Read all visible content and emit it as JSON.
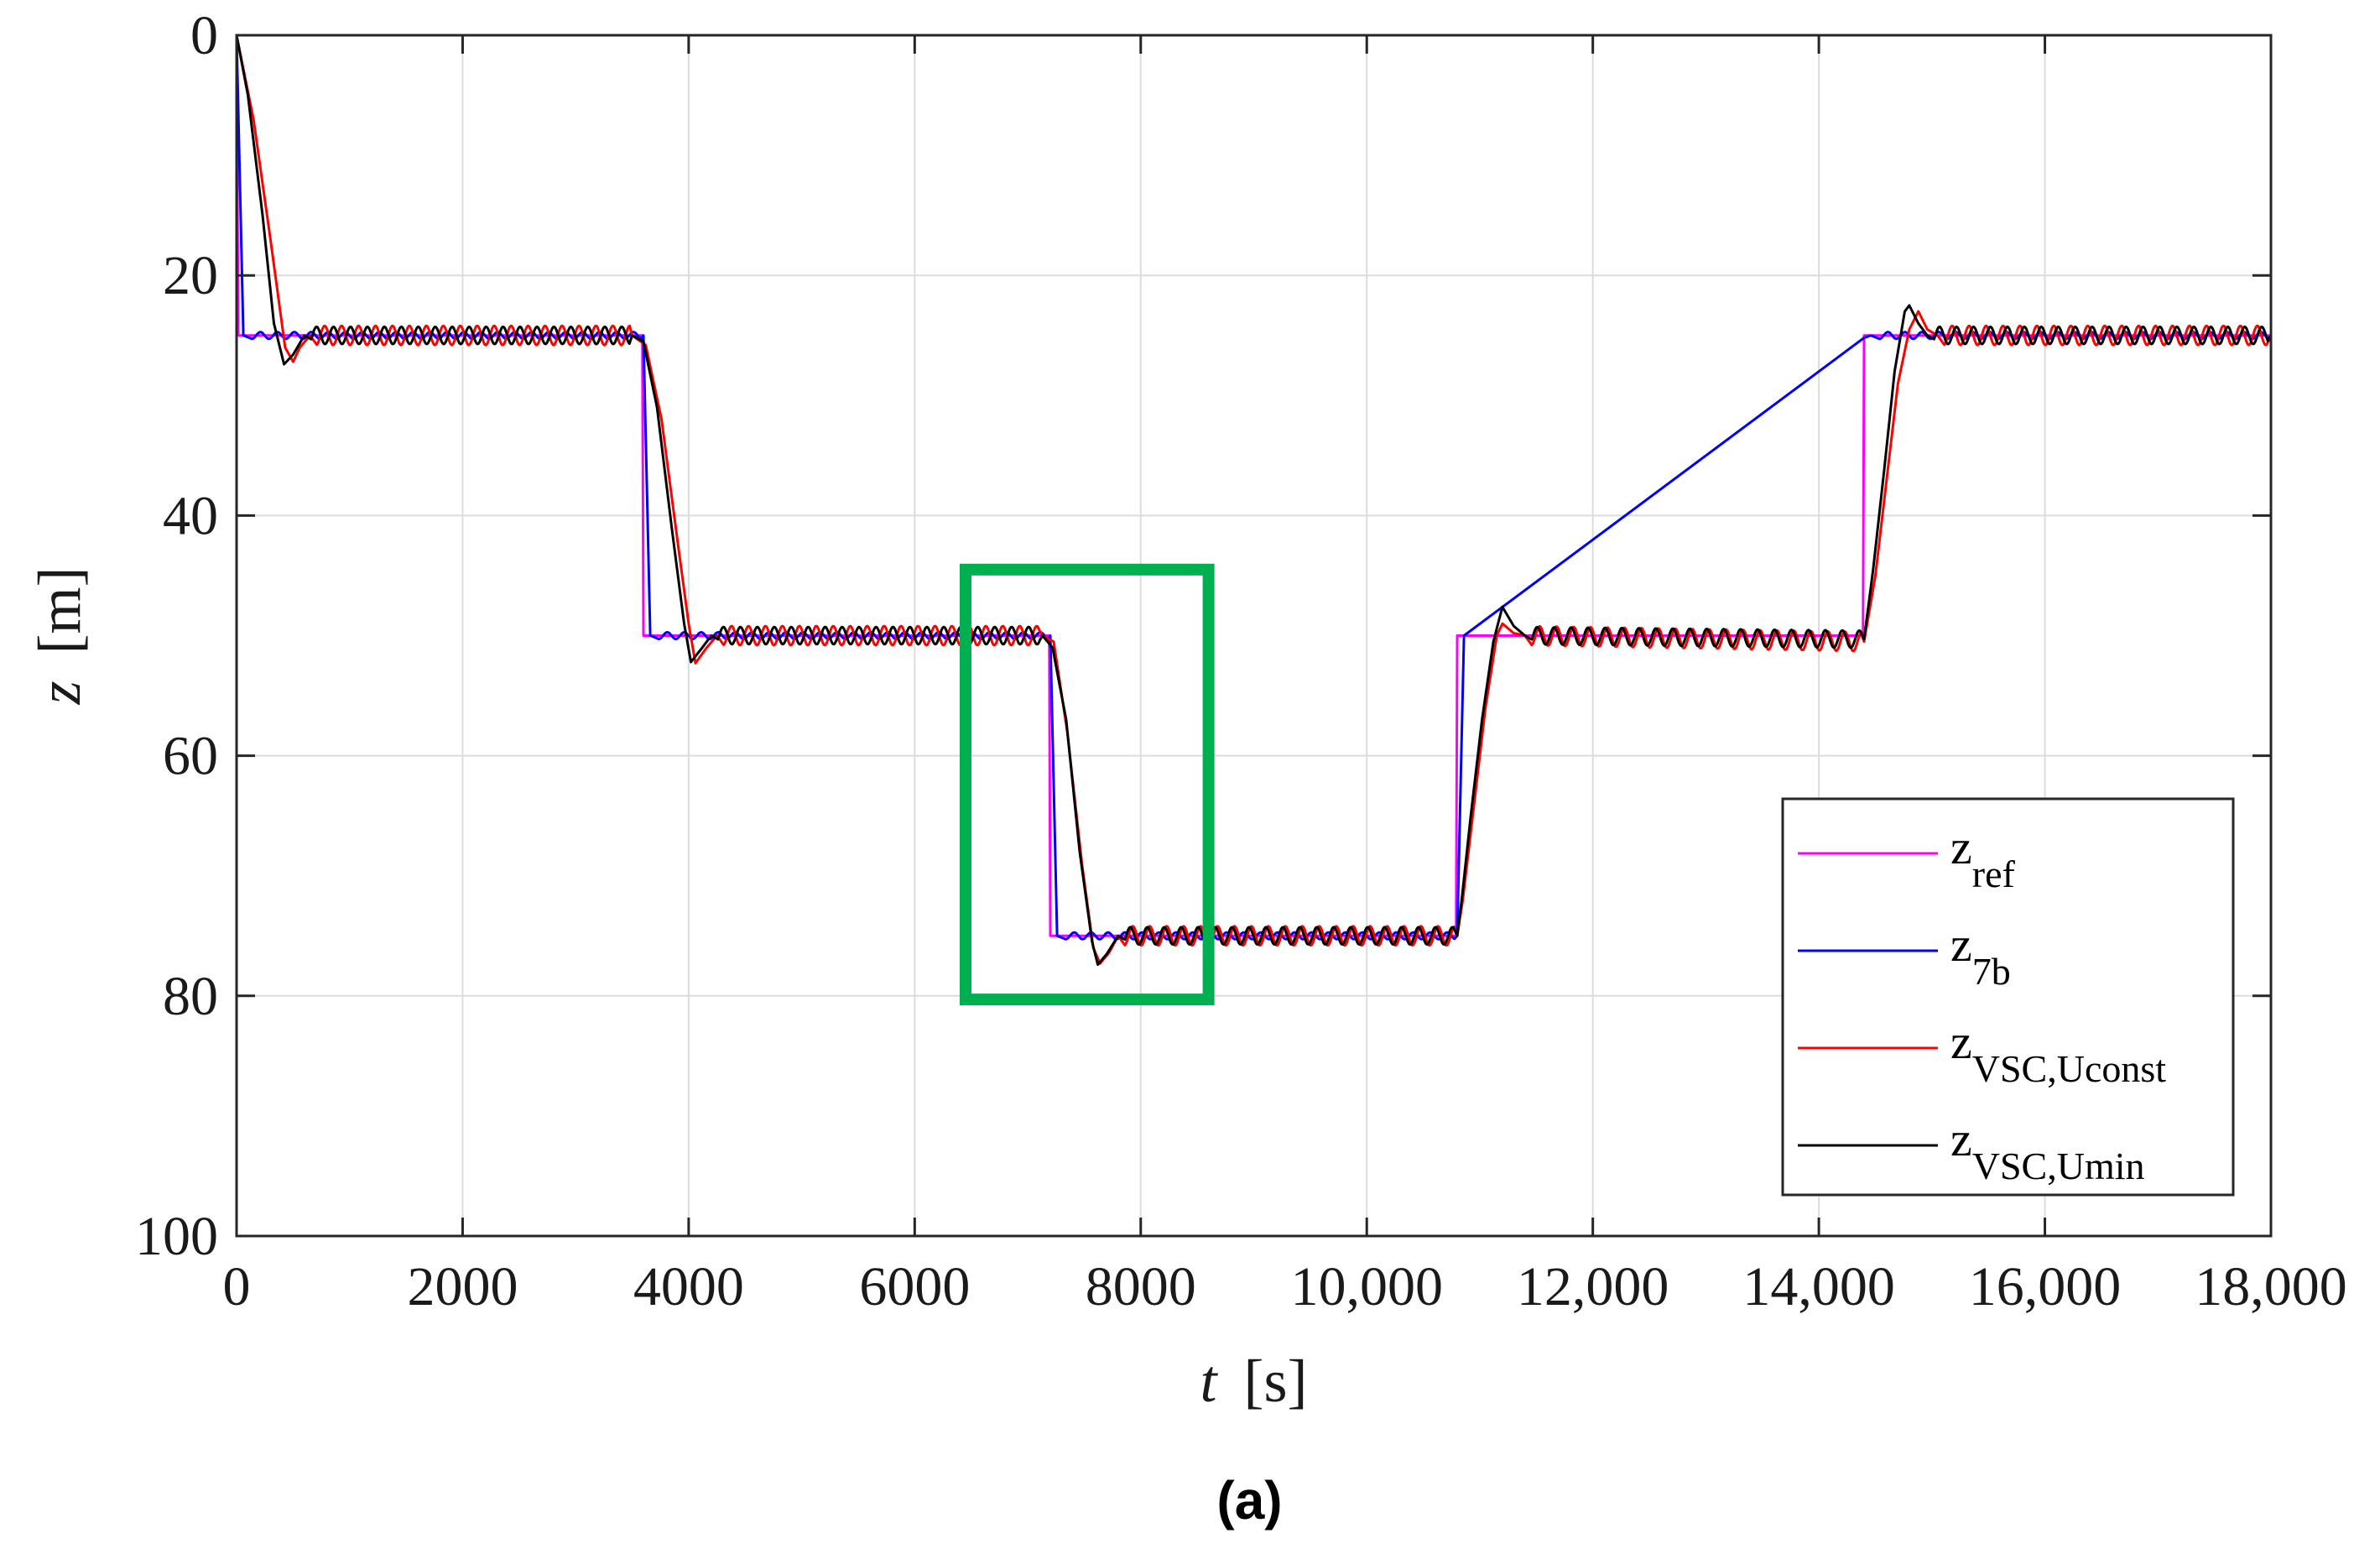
{
  "chart_data": {
    "type": "line",
    "caption": "(a)",
    "xlabel": {
      "variable": "t",
      "unit": "[s]"
    },
    "ylabel": {
      "variable": "z",
      "unit": "[m]"
    },
    "xlim": [
      0,
      18000
    ],
    "ylim": [
      0,
      100
    ],
    "y_reversed": true,
    "grid": true,
    "x_ticks": [
      {
        "value": 0,
        "label": "0"
      },
      {
        "value": 2000,
        "label": "2000"
      },
      {
        "value": 4000,
        "label": "4000"
      },
      {
        "value": 6000,
        "label": "6000"
      },
      {
        "value": 8000,
        "label": "8000"
      },
      {
        "value": 10000,
        "label": "10,000"
      },
      {
        "value": 12000,
        "label": "12,000"
      },
      {
        "value": 14000,
        "label": "14,000"
      },
      {
        "value": 16000,
        "label": "16,000"
      },
      {
        "value": 18000,
        "label": "18,000"
      }
    ],
    "y_ticks": [
      {
        "value": 0,
        "label": "0"
      },
      {
        "value": 20,
        "label": "20"
      },
      {
        "value": 40,
        "label": "40"
      },
      {
        "value": 60,
        "label": "60"
      },
      {
        "value": 80,
        "label": "80"
      },
      {
        "value": 100,
        "label": "100"
      }
    ],
    "legend_position": "lower-right",
    "oscillation": {
      "period_s": 150,
      "amplitude_m": 0.8
    },
    "series": [
      {
        "name": "z",
        "subscript": "ref",
        "color": "#ff00ff",
        "oscillates": false,
        "points": [
          [
            0,
            0
          ],
          [
            15,
            25
          ],
          [
            3590,
            25
          ],
          [
            3600,
            50
          ],
          [
            7190,
            50
          ],
          [
            7200,
            75
          ],
          [
            10790,
            75
          ],
          [
            10800,
            50
          ],
          [
            14390,
            50
          ],
          [
            14400,
            25
          ],
          [
            18000,
            25
          ]
        ]
      },
      {
        "name": "z",
        "subscript": "7b",
        "color": "#0000ff",
        "oscillates": true,
        "osc_scale": 0.35,
        "points": [
          [
            0,
            0
          ],
          [
            60,
            25
          ],
          [
            3600,
            25
          ],
          [
            3660,
            50
          ],
          [
            7200,
            50
          ],
          [
            7260,
            75
          ],
          [
            10800,
            75
          ],
          [
            10860,
            50
          ],
          [
            14400,
            25.2
          ],
          [
            14460,
            25
          ],
          [
            18000,
            25
          ]
        ]
      },
      {
        "name": "z",
        "subscript": "VSC,Uconst",
        "color": "#ff0000",
        "oscillates": true,
        "osc_scale": 1.0,
        "points": [
          [
            0,
            0
          ],
          [
            150,
            7
          ],
          [
            300,
            17
          ],
          [
            430,
            26
          ],
          [
            500,
            27.2
          ],
          [
            560,
            26
          ],
          [
            650,
            25
          ],
          [
            3500,
            25
          ],
          [
            3620,
            25.8
          ],
          [
            3760,
            32
          ],
          [
            3900,
            42
          ],
          [
            4000,
            49
          ],
          [
            4060,
            52.3
          ],
          [
            4160,
            51
          ],
          [
            4250,
            50
          ],
          [
            7130,
            50
          ],
          [
            7230,
            50.5
          ],
          [
            7350,
            58
          ],
          [
            7480,
            69
          ],
          [
            7580,
            76
          ],
          [
            7640,
            77.3
          ],
          [
            7720,
            76.4
          ],
          [
            7800,
            75
          ],
          [
            10800,
            75
          ],
          [
            10850,
            72
          ],
          [
            10950,
            64
          ],
          [
            11050,
            56
          ],
          [
            11150,
            50
          ],
          [
            11200,
            49
          ],
          [
            11300,
            49.8
          ],
          [
            11400,
            50
          ],
          [
            14400,
            50.5
          ],
          [
            14500,
            45
          ],
          [
            14600,
            37
          ],
          [
            14700,
            29
          ],
          [
            14800,
            24.5
          ],
          [
            14880,
            23
          ],
          [
            14960,
            24.5
          ],
          [
            15050,
            25
          ],
          [
            18000,
            25
          ]
        ]
      },
      {
        "name": "z",
        "subscript": "VSC,Umin",
        "color": "#000000",
        "oscillates": true,
        "osc_scale": 0.9,
        "points": [
          [
            0,
            0
          ],
          [
            100,
            5
          ],
          [
            230,
            15
          ],
          [
            330,
            24
          ],
          [
            420,
            27.4
          ],
          [
            500,
            26.6
          ],
          [
            600,
            25
          ],
          [
            3500,
            25
          ],
          [
            3600,
            25.5
          ],
          [
            3720,
            31
          ],
          [
            3850,
            41
          ],
          [
            3960,
            49
          ],
          [
            4020,
            52.2
          ],
          [
            4120,
            51
          ],
          [
            4200,
            50
          ],
          [
            7130,
            50
          ],
          [
            7220,
            51
          ],
          [
            7340,
            57
          ],
          [
            7460,
            68
          ],
          [
            7570,
            75.5
          ],
          [
            7620,
            77.4
          ],
          [
            7700,
            76.5
          ],
          [
            7800,
            75
          ],
          [
            10800,
            75
          ],
          [
            10840,
            72
          ],
          [
            10920,
            65
          ],
          [
            11020,
            57
          ],
          [
            11120,
            50.5
          ],
          [
            11200,
            47.6
          ],
          [
            11300,
            49.2
          ],
          [
            11400,
            50
          ],
          [
            14400,
            50.3
          ],
          [
            14480,
            44.5
          ],
          [
            14580,
            36
          ],
          [
            14670,
            28
          ],
          [
            14760,
            23
          ],
          [
            14800,
            22.5
          ],
          [
            14880,
            24
          ],
          [
            14960,
            25
          ],
          [
            18000,
            25
          ]
        ]
      }
    ],
    "annotations": [
      {
        "type": "rectangle",
        "color": "#00b050",
        "x_range": [
          6450,
          8600
        ],
        "y_range": [
          44.5,
          80.3
        ]
      }
    ]
  }
}
